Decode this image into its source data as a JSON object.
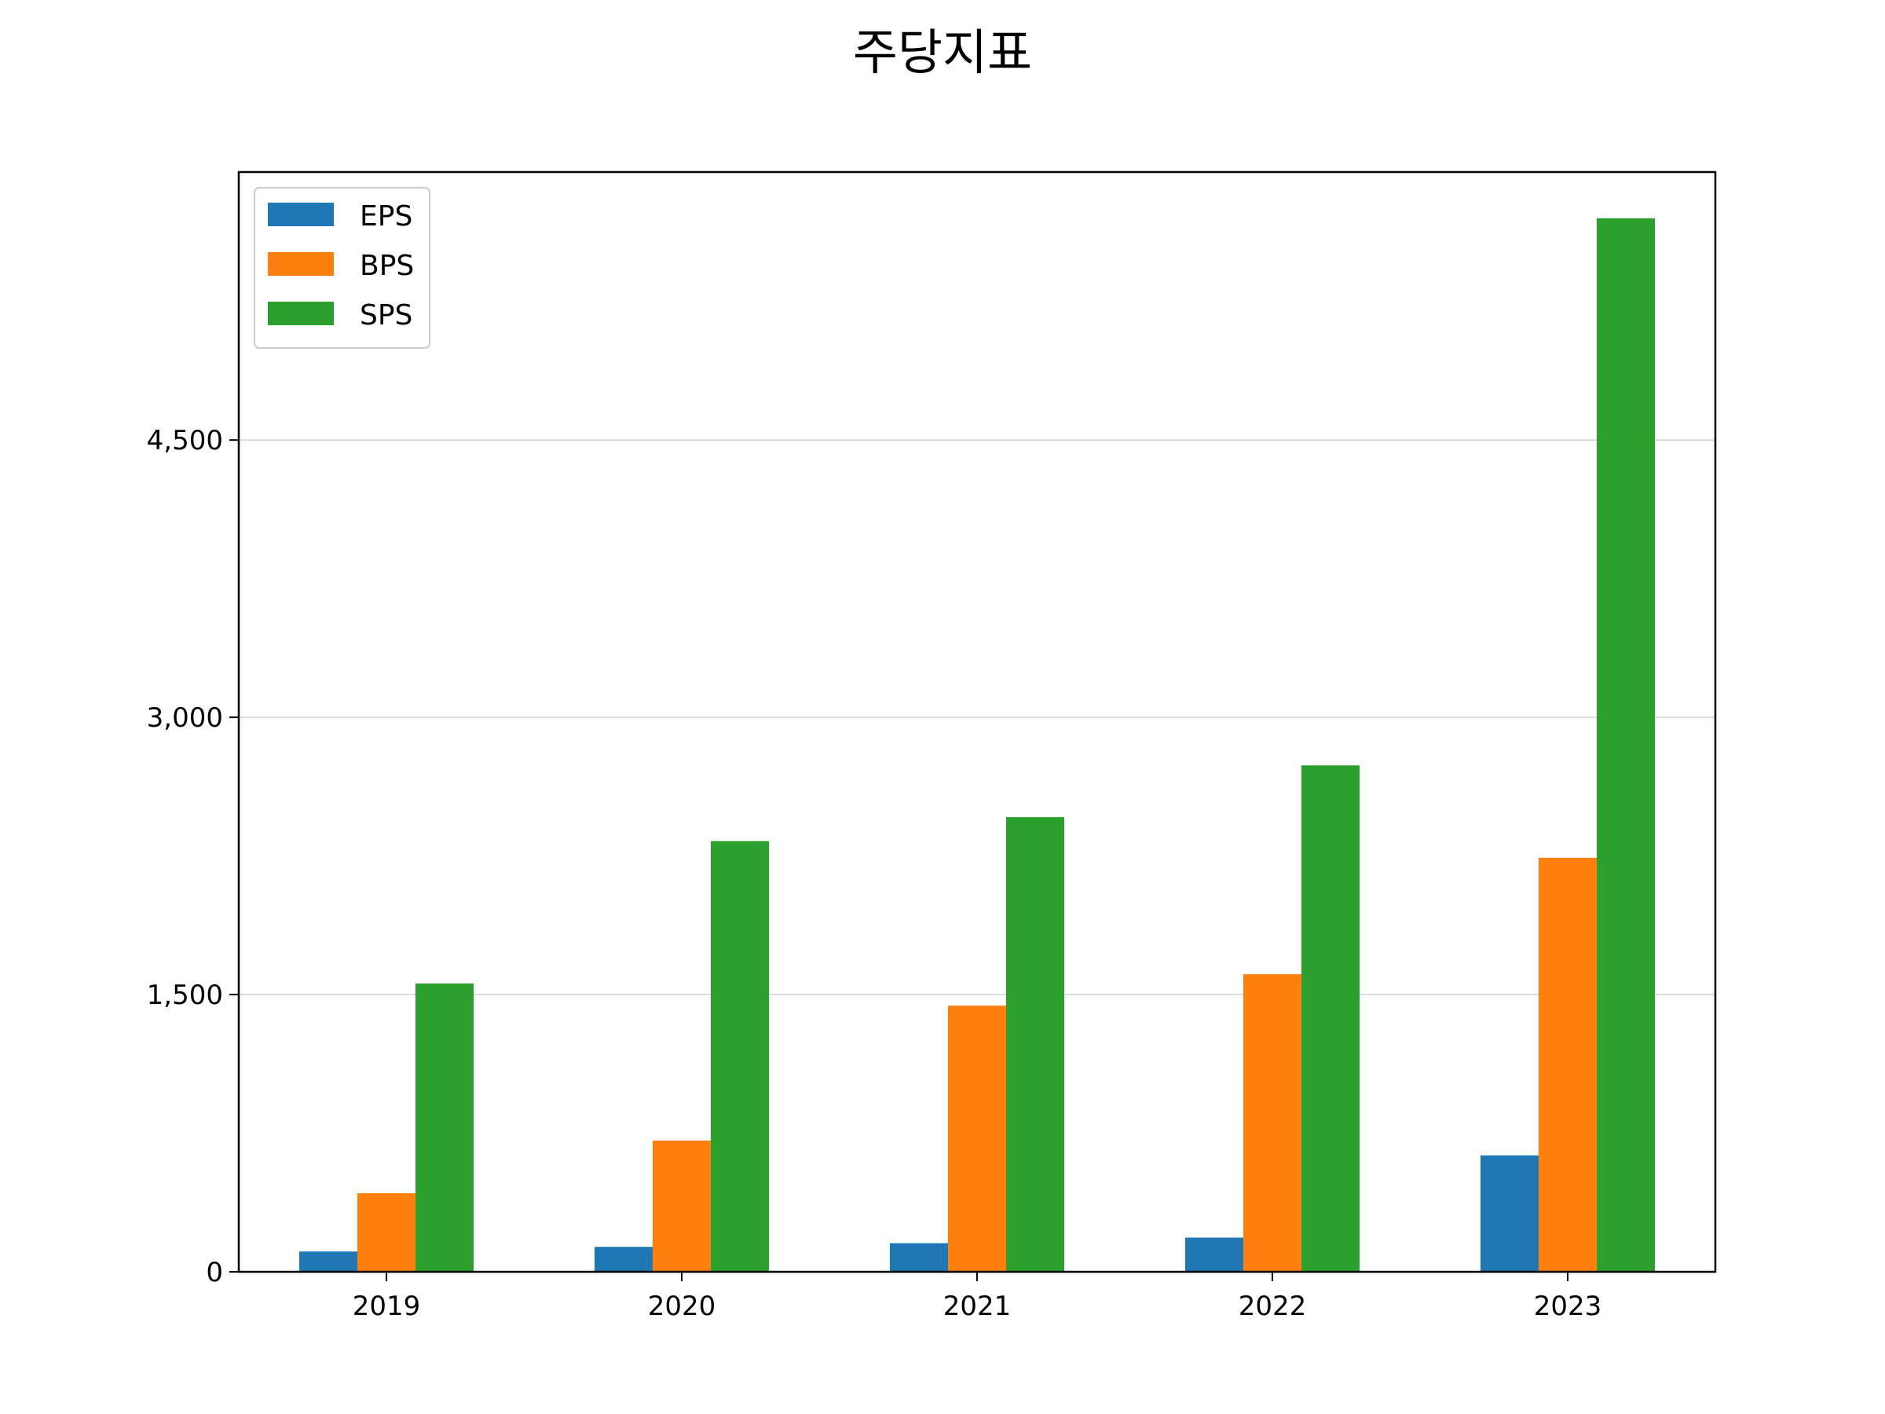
{
  "chart_data": {
    "type": "bar",
    "title": "주당지표",
    "xlabel": "",
    "ylabel": "",
    "categories": [
      "2019",
      "2020",
      "2021",
      "2022",
      "2023"
    ],
    "series": [
      {
        "name": "EPS",
        "color": "#1f77b4",
        "values": [
          110,
          135,
          155,
          185,
          630
        ]
      },
      {
        "name": "BPS",
        "color": "#ff7f0e",
        "values": [
          425,
          710,
          1440,
          1610,
          2240
        ]
      },
      {
        "name": "SPS",
        "color": "#2ca02c",
        "values": [
          1560,
          2330,
          2460,
          2740,
          5700
        ]
      }
    ],
    "ylim": [
      0,
      5950
    ],
    "yticks": [
      0,
      1500,
      3000,
      4500
    ],
    "ytick_labels": [
      "0",
      "1,500",
      "3,000",
      "4,500"
    ],
    "grid": "horizontal",
    "legend_position": "top-left"
  }
}
